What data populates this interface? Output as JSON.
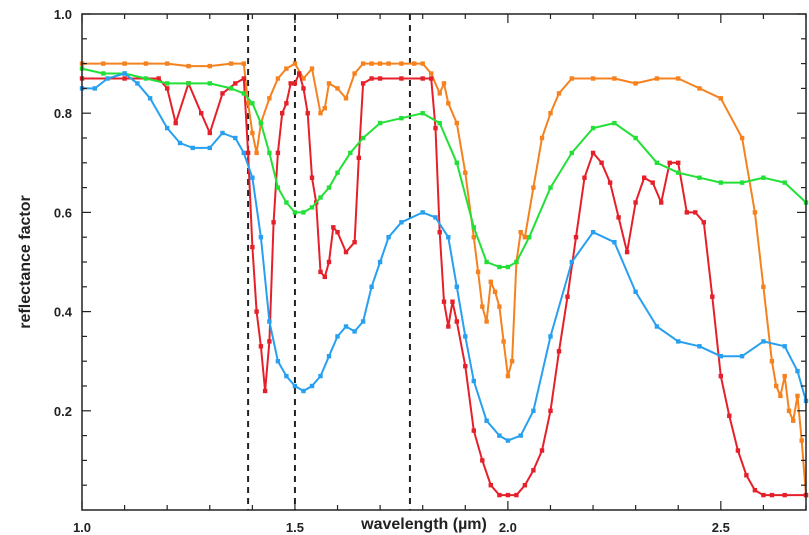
{
  "chart_data": {
    "type": "line",
    "xlabel": "wavelength (µm)",
    "ylabel": "reflectance factor",
    "xlim": [
      1.0,
      2.7
    ],
    "ylim": [
      0.0,
      1.0
    ],
    "x_ticks": [
      "1.0",
      "1.5",
      "2.0",
      "2.5"
    ],
    "y_ticks": [
      "0.2",
      "0.4",
      "0.6",
      "0.8",
      "1.0"
    ],
    "grid": false,
    "legend": "none",
    "vlines": [
      1.39,
      1.5,
      1.77
    ],
    "series": [
      {
        "color": "#f5821f",
        "x": [
          1.0,
          1.05,
          1.1,
          1.15,
          1.2,
          1.25,
          1.3,
          1.35,
          1.38,
          1.39,
          1.4,
          1.41,
          1.42,
          1.44,
          1.46,
          1.48,
          1.5,
          1.52,
          1.54,
          1.56,
          1.57,
          1.58,
          1.6,
          1.62,
          1.64,
          1.66,
          1.68,
          1.7,
          1.72,
          1.75,
          1.78,
          1.8,
          1.82,
          1.84,
          1.85,
          1.86,
          1.88,
          1.9,
          1.92,
          1.93,
          1.94,
          1.95,
          1.96,
          1.97,
          1.98,
          1.99,
          2.0,
          2.01,
          2.02,
          2.03,
          2.04,
          2.06,
          2.08,
          2.1,
          2.12,
          2.15,
          2.2,
          2.25,
          2.3,
          2.35,
          2.4,
          2.45,
          2.5,
          2.55,
          2.58,
          2.6,
          2.62,
          2.63,
          2.64,
          2.65,
          2.66,
          2.67,
          2.68,
          2.69,
          2.7
        ],
        "y": [
          0.9,
          0.9,
          0.9,
          0.9,
          0.9,
          0.895,
          0.895,
          0.9,
          0.9,
          0.82,
          0.76,
          0.72,
          0.78,
          0.83,
          0.87,
          0.89,
          0.9,
          0.87,
          0.89,
          0.8,
          0.81,
          0.86,
          0.85,
          0.83,
          0.88,
          0.9,
          0.9,
          0.9,
          0.9,
          0.9,
          0.9,
          0.9,
          0.88,
          0.84,
          0.86,
          0.82,
          0.78,
          0.68,
          0.55,
          0.48,
          0.41,
          0.38,
          0.46,
          0.44,
          0.41,
          0.34,
          0.27,
          0.3,
          0.5,
          0.56,
          0.55,
          0.65,
          0.75,
          0.8,
          0.84,
          0.87,
          0.87,
          0.87,
          0.86,
          0.87,
          0.87,
          0.85,
          0.83,
          0.75,
          0.6,
          0.45,
          0.3,
          0.25,
          0.23,
          0.27,
          0.2,
          0.18,
          0.23,
          0.14,
          0.03
        ]
      },
      {
        "color": "#e5202a",
        "x": [
          1.0,
          1.1,
          1.18,
          1.2,
          1.22,
          1.25,
          1.28,
          1.3,
          1.33,
          1.36,
          1.38,
          1.39,
          1.4,
          1.41,
          1.42,
          1.43,
          1.44,
          1.45,
          1.46,
          1.47,
          1.48,
          1.49,
          1.5,
          1.51,
          1.52,
          1.53,
          1.54,
          1.55,
          1.56,
          1.57,
          1.58,
          1.59,
          1.6,
          1.62,
          1.64,
          1.65,
          1.66,
          1.68,
          1.7,
          1.75,
          1.8,
          1.82,
          1.83,
          1.84,
          1.85,
          1.86,
          1.87,
          1.88,
          1.9,
          1.92,
          1.94,
          1.96,
          1.98,
          2.0,
          2.02,
          2.04,
          2.06,
          2.08,
          2.1,
          2.12,
          2.14,
          2.16,
          2.18,
          2.2,
          2.22,
          2.24,
          2.26,
          2.28,
          2.3,
          2.32,
          2.34,
          2.36,
          2.38,
          2.4,
          2.42,
          2.44,
          2.46,
          2.48,
          2.5,
          2.52,
          2.54,
          2.56,
          2.58,
          2.6,
          2.62,
          2.65,
          2.7
        ],
        "y": [
          0.87,
          0.87,
          0.87,
          0.85,
          0.78,
          0.86,
          0.8,
          0.76,
          0.84,
          0.86,
          0.87,
          0.72,
          0.53,
          0.4,
          0.33,
          0.24,
          0.34,
          0.58,
          0.72,
          0.8,
          0.82,
          0.86,
          0.86,
          0.88,
          0.85,
          0.8,
          0.67,
          0.62,
          0.48,
          0.47,
          0.5,
          0.57,
          0.56,
          0.52,
          0.54,
          0.71,
          0.86,
          0.87,
          0.87,
          0.87,
          0.87,
          0.87,
          0.77,
          0.56,
          0.42,
          0.37,
          0.42,
          0.38,
          0.29,
          0.16,
          0.1,
          0.05,
          0.03,
          0.03,
          0.03,
          0.05,
          0.08,
          0.12,
          0.2,
          0.32,
          0.43,
          0.55,
          0.67,
          0.72,
          0.7,
          0.66,
          0.59,
          0.52,
          0.62,
          0.67,
          0.66,
          0.62,
          0.7,
          0.7,
          0.6,
          0.6,
          0.58,
          0.43,
          0.27,
          0.19,
          0.12,
          0.07,
          0.04,
          0.03,
          0.03,
          0.03,
          0.03
        ]
      },
      {
        "color": "#22e038",
        "x": [
          1.0,
          1.05,
          1.1,
          1.15,
          1.2,
          1.25,
          1.3,
          1.35,
          1.38,
          1.4,
          1.42,
          1.44,
          1.46,
          1.48,
          1.5,
          1.52,
          1.54,
          1.56,
          1.58,
          1.6,
          1.63,
          1.66,
          1.7,
          1.75,
          1.8,
          1.84,
          1.88,
          1.92,
          1.95,
          1.98,
          2.0,
          2.02,
          2.05,
          2.1,
          2.15,
          2.2,
          2.25,
          2.3,
          2.35,
          2.4,
          2.45,
          2.5,
          2.55,
          2.6,
          2.65,
          2.7
        ],
        "y": [
          0.89,
          0.88,
          0.88,
          0.87,
          0.86,
          0.86,
          0.86,
          0.85,
          0.84,
          0.82,
          0.78,
          0.72,
          0.65,
          0.62,
          0.6,
          0.6,
          0.61,
          0.63,
          0.65,
          0.68,
          0.72,
          0.75,
          0.78,
          0.79,
          0.8,
          0.78,
          0.7,
          0.57,
          0.5,
          0.49,
          0.49,
          0.5,
          0.55,
          0.65,
          0.72,
          0.77,
          0.78,
          0.75,
          0.7,
          0.68,
          0.67,
          0.66,
          0.66,
          0.67,
          0.66,
          0.62
        ]
      },
      {
        "color": "#27a0f0",
        "x": [
          1.0,
          1.03,
          1.06,
          1.1,
          1.13,
          1.16,
          1.2,
          1.23,
          1.26,
          1.3,
          1.33,
          1.36,
          1.38,
          1.4,
          1.42,
          1.44,
          1.46,
          1.48,
          1.5,
          1.52,
          1.54,
          1.56,
          1.58,
          1.6,
          1.62,
          1.64,
          1.66,
          1.68,
          1.7,
          1.72,
          1.75,
          1.8,
          1.83,
          1.86,
          1.88,
          1.9,
          1.92,
          1.95,
          1.98,
          2.0,
          2.03,
          2.06,
          2.1,
          2.15,
          2.2,
          2.25,
          2.3,
          2.35,
          2.4,
          2.45,
          2.5,
          2.55,
          2.6,
          2.65,
          2.68,
          2.7
        ],
        "y": [
          0.85,
          0.85,
          0.87,
          0.88,
          0.86,
          0.83,
          0.77,
          0.74,
          0.73,
          0.73,
          0.76,
          0.75,
          0.72,
          0.67,
          0.55,
          0.38,
          0.3,
          0.27,
          0.25,
          0.24,
          0.25,
          0.27,
          0.31,
          0.35,
          0.37,
          0.36,
          0.38,
          0.45,
          0.5,
          0.55,
          0.58,
          0.6,
          0.59,
          0.55,
          0.45,
          0.35,
          0.26,
          0.18,
          0.15,
          0.14,
          0.15,
          0.2,
          0.35,
          0.5,
          0.56,
          0.54,
          0.44,
          0.37,
          0.34,
          0.33,
          0.31,
          0.31,
          0.34,
          0.33,
          0.28,
          0.22
        ]
      }
    ]
  }
}
